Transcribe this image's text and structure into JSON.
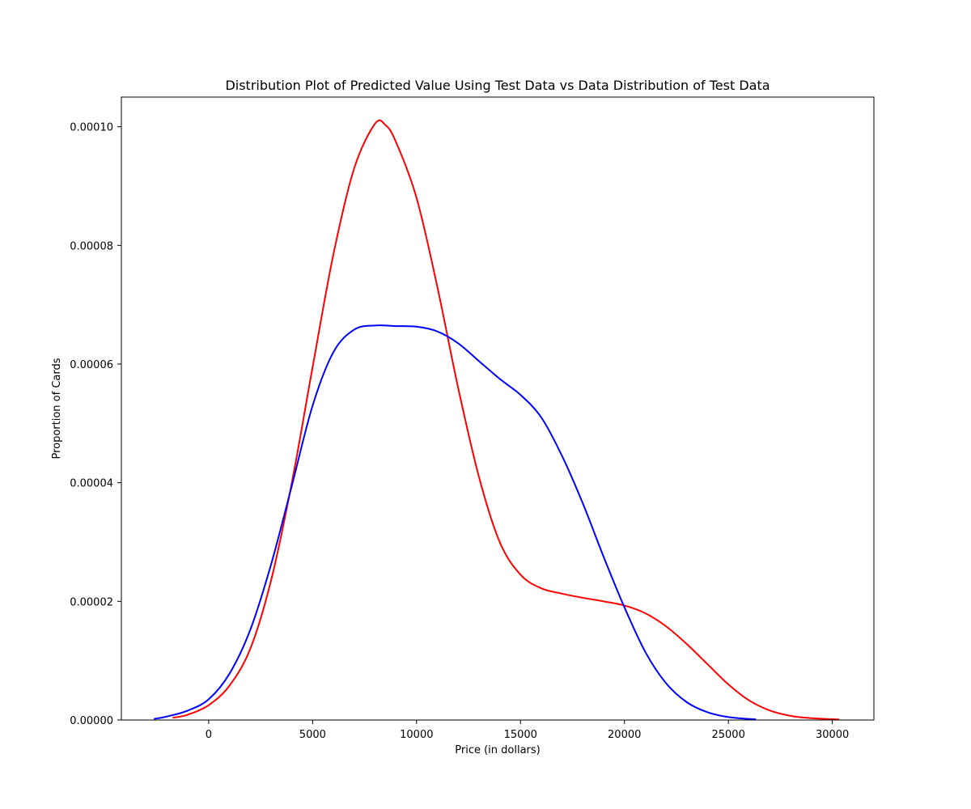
{
  "chart_data": {
    "type": "line",
    "title": "Distribution Plot of Predicted Value Using Test Data vs Data Distribution of Test Data",
    "xlabel": "Price (in dollars)",
    "ylabel": "Proportion of Cards",
    "xlim": [
      -4200,
      32000
    ],
    "ylim": [
      0,
      0.000105
    ],
    "x_ticks": [
      0,
      5000,
      10000,
      15000,
      20000,
      25000,
      30000
    ],
    "x_tick_labels": [
      "0",
      "5000",
      "10000",
      "15000",
      "20000",
      "25000",
      "30000"
    ],
    "y_ticks": [
      0,
      2e-05,
      4e-05,
      6e-05,
      8e-05,
      0.0001
    ],
    "y_tick_labels": [
      "0.00000",
      "0.00002",
      "0.00004",
      "0.00006",
      "0.00008",
      "0.00010"
    ],
    "grid": false,
    "series": [
      {
        "color": "#ff0000",
        "points": [
          [
            -1700,
            4e-07
          ],
          [
            -1000,
            9e-07
          ],
          [
            0,
            2.5e-06
          ],
          [
            1000,
            5.8e-06
          ],
          [
            2000,
            1.2e-05
          ],
          [
            3000,
            2.35e-05
          ],
          [
            4000,
            4e-05
          ],
          [
            5000,
            5.95e-05
          ],
          [
            6000,
            7.85e-05
          ],
          [
            7000,
            9.3e-05
          ],
          [
            8000,
            0.0001005
          ],
          [
            8500,
            0.0001003
          ],
          [
            9000,
            9.75e-05
          ],
          [
            10000,
            8.8e-05
          ],
          [
            11000,
            7.3e-05
          ],
          [
            12000,
            5.6e-05
          ],
          [
            13000,
            4.1e-05
          ],
          [
            14000,
            3e-05
          ],
          [
            15000,
            2.45e-05
          ],
          [
            16000,
            2.22e-05
          ],
          [
            17000,
            2.13e-05
          ],
          [
            18000,
            2.06e-05
          ],
          [
            19000,
            2e-05
          ],
          [
            20000,
            1.93e-05
          ],
          [
            21000,
            1.8e-05
          ],
          [
            22000,
            1.58e-05
          ],
          [
            23000,
            1.28e-05
          ],
          [
            24000,
            9.4e-06
          ],
          [
            25000,
            6e-06
          ],
          [
            26000,
            3.3e-06
          ],
          [
            27000,
            1.6e-06
          ],
          [
            28000,
            7e-07
          ],
          [
            29000,
            3e-07
          ],
          [
            30300,
            1e-07
          ]
        ]
      },
      {
        "color": "#0000ff",
        "points": [
          [
            -2600,
            2e-07
          ],
          [
            -2000,
            6e-07
          ],
          [
            -1000,
            1.6e-06
          ],
          [
            0,
            3.5e-06
          ],
          [
            1000,
            7.8e-06
          ],
          [
            2000,
            1.52e-05
          ],
          [
            3000,
            2.62e-05
          ],
          [
            4000,
            3.95e-05
          ],
          [
            5000,
            5.3e-05
          ],
          [
            6000,
            6.2e-05
          ],
          [
            7000,
            6.58e-05
          ],
          [
            8000,
            6.65e-05
          ],
          [
            9000,
            6.64e-05
          ],
          [
            10000,
            6.63e-05
          ],
          [
            11000,
            6.55e-05
          ],
          [
            12000,
            6.35e-05
          ],
          [
            13000,
            6.05e-05
          ],
          [
            14000,
            5.75e-05
          ],
          [
            15000,
            5.48e-05
          ],
          [
            16000,
            5.1e-05
          ],
          [
            17000,
            4.45e-05
          ],
          [
            18000,
            3.65e-05
          ],
          [
            19000,
            2.75e-05
          ],
          [
            20000,
            1.9e-05
          ],
          [
            21000,
            1.15e-05
          ],
          [
            22000,
            6.2e-06
          ],
          [
            23000,
            3e-06
          ],
          [
            24000,
            1.3e-06
          ],
          [
            25000,
            5e-07
          ],
          [
            26300,
            1e-07
          ]
        ]
      }
    ]
  }
}
